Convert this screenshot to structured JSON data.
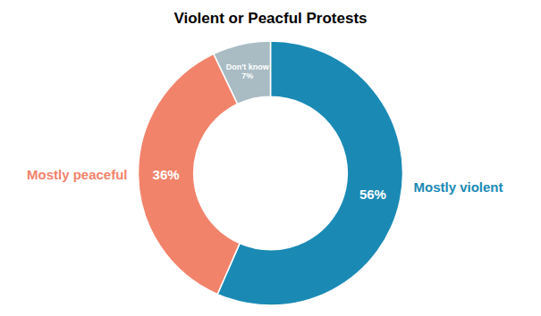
{
  "chart_data": {
    "type": "donut",
    "title": "Violent or Peacful Protests",
    "categories": [
      "Mostly violent",
      "Mostly peaceful",
      "Don't know"
    ],
    "values": [
      56,
      36,
      7
    ],
    "value_labels": [
      "56%",
      "36%",
      "7%"
    ],
    "colors": [
      "#1a8ab5",
      "#f2836b",
      "#a9bcc4"
    ],
    "data_labels": true
  }
}
